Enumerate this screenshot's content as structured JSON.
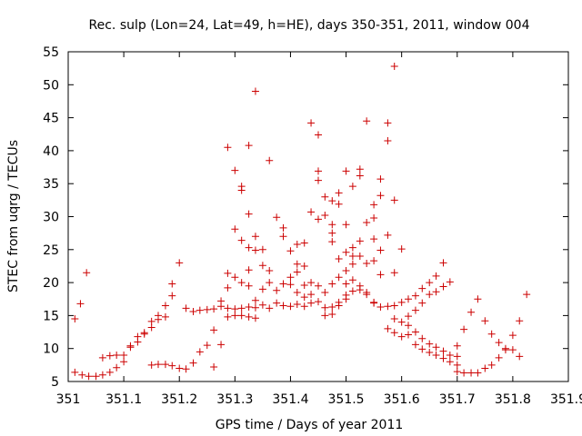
{
  "chart_data": {
    "type": "scatter",
    "title": "Rec. sulp (Lon=24, Lat=49, h=HE), days 350-351, 2011, window 004",
    "xlabel": "GPS time / Days of year 2011",
    "ylabel": "STEC from uqrg / TECUs",
    "xlim": [
      351,
      351.9
    ],
    "ylim": [
      5,
      55
    ],
    "xticks": [
      "351",
      "351.1",
      "351.2",
      "351.3",
      "351.4",
      "351.5",
      "351.6",
      "351.7",
      "351.8",
      "351.9"
    ],
    "yticks": [
      "5",
      "10",
      "15",
      "20",
      "25",
      "30",
      "35",
      "40",
      "45",
      "50",
      "55"
    ],
    "grid": false,
    "marker": "plus",
    "color": "#cc0000",
    "points": [
      [
        351.012,
        14.5
      ],
      [
        351.022,
        16.8
      ],
      [
        351.033,
        21.5
      ],
      [
        351.012,
        6.4
      ],
      [
        351.025,
        6.0
      ],
      [
        351.037,
        5.8
      ],
      [
        351.05,
        5.8
      ],
      [
        351.062,
        6.0
      ],
      [
        351.075,
        6.4
      ],
      [
        351.087,
        7.1
      ],
      [
        351.1,
        8.0
      ],
      [
        351.062,
        8.6
      ],
      [
        351.075,
        8.9
      ],
      [
        351.087,
        9.0
      ],
      [
        351.1,
        9.0
      ],
      [
        351.112,
        10.4
      ],
      [
        351.125,
        11.0
      ],
      [
        351.137,
        12.2
      ],
      [
        351.15,
        13.2
      ],
      [
        351.162,
        14.4
      ],
      [
        351.175,
        16.5
      ],
      [
        351.187,
        19.8
      ],
      [
        351.112,
        10.2
      ],
      [
        351.125,
        11.8
      ],
      [
        351.137,
        12.4
      ],
      [
        351.15,
        14.1
      ],
      [
        351.162,
        15.0
      ],
      [
        351.175,
        14.8
      ],
      [
        351.187,
        18.0
      ],
      [
        351.2,
        23.0
      ],
      [
        351.15,
        7.5
      ],
      [
        351.162,
        7.6
      ],
      [
        351.175,
        7.6
      ],
      [
        351.187,
        7.4
      ],
      [
        351.2,
        7.0
      ],
      [
        351.212,
        6.9
      ],
      [
        351.225,
        7.8
      ],
      [
        351.237,
        9.5
      ],
      [
        351.25,
        10.5
      ],
      [
        351.262,
        7.2
      ],
      [
        351.275,
        10.6
      ],
      [
        351.212,
        16.1
      ],
      [
        351.225,
        15.6
      ],
      [
        351.237,
        15.8
      ],
      [
        351.25,
        15.9
      ],
      [
        351.262,
        16.0
      ],
      [
        351.275,
        16.4
      ],
      [
        351.287,
        14.8
      ],
      [
        351.3,
        15.0
      ],
      [
        351.312,
        15.0
      ],
      [
        351.325,
        14.8
      ],
      [
        351.337,
        14.6
      ],
      [
        351.262,
        12.8
      ],
      [
        351.275,
        17.2
      ],
      [
        351.287,
        19.2
      ],
      [
        351.3,
        20.8
      ],
      [
        351.312,
        20.0
      ],
      [
        351.325,
        21.9
      ],
      [
        351.287,
        21.4
      ],
      [
        351.3,
        28.1
      ],
      [
        351.312,
        26.4
      ],
      [
        351.325,
        25.3
      ],
      [
        351.337,
        24.9
      ],
      [
        351.35,
        22.6
      ],
      [
        351.362,
        21.8
      ],
      [
        351.3,
        37.0
      ],
      [
        351.312,
        34.0
      ],
      [
        351.312,
        34.6
      ],
      [
        351.325,
        30.4
      ],
      [
        351.337,
        27.0
      ],
      [
        351.35,
        25.0
      ],
      [
        351.287,
        40.5
      ],
      [
        351.325,
        40.8
      ],
      [
        351.337,
        49.0
      ],
      [
        351.362,
        38.5
      ],
      [
        351.375,
        29.9
      ],
      [
        351.387,
        27.0
      ],
      [
        351.387,
        28.3
      ],
      [
        351.287,
        16.1
      ],
      [
        351.3,
        16.0
      ],
      [
        351.312,
        16.1
      ],
      [
        351.325,
        16.3
      ],
      [
        351.337,
        16.2
      ],
      [
        351.35,
        16.6
      ],
      [
        351.362,
        16.1
      ],
      [
        351.375,
        16.9
      ],
      [
        351.387,
        16.5
      ],
      [
        351.4,
        16.4
      ],
      [
        351.412,
        16.7
      ],
      [
        351.325,
        19.5
      ],
      [
        351.337,
        17.3
      ],
      [
        351.35,
        19.0
      ],
      [
        351.362,
        20.0
      ],
      [
        351.375,
        18.8
      ],
      [
        351.387,
        19.8
      ],
      [
        351.4,
        19.7
      ],
      [
        351.412,
        18.5
      ],
      [
        351.425,
        19.6
      ],
      [
        351.437,
        18.2
      ],
      [
        351.4,
        20.8
      ],
      [
        351.412,
        21.6
      ],
      [
        351.425,
        22.5
      ],
      [
        351.437,
        20.0
      ],
      [
        351.45,
        19.5
      ],
      [
        351.4,
        24.8
      ],
      [
        351.412,
        25.8
      ],
      [
        351.425,
        26.0
      ],
      [
        351.437,
        30.7
      ],
      [
        351.45,
        29.6
      ],
      [
        351.412,
        22.8
      ],
      [
        351.425,
        17.8
      ],
      [
        351.437,
        44.2
      ],
      [
        351.45,
        42.4
      ],
      [
        351.45,
        36.9
      ],
      [
        351.45,
        35.5
      ],
      [
        351.462,
        33.0
      ],
      [
        351.475,
        32.4
      ],
      [
        351.462,
        30.2
      ],
      [
        351.475,
        28.8
      ],
      [
        351.475,
        27.5
      ],
      [
        351.475,
        26.2
      ],
      [
        351.487,
        33.6
      ],
      [
        351.487,
        31.9
      ],
      [
        351.5,
        36.9
      ],
      [
        351.512,
        34.6
      ],
      [
        351.525,
        37.2
      ],
      [
        351.525,
        36.2
      ],
      [
        351.5,
        28.8
      ],
      [
        351.512,
        24.0
      ],
      [
        351.425,
        16.4
      ],
      [
        351.437,
        16.9
      ],
      [
        351.45,
        17.1
      ],
      [
        351.462,
        16.2
      ],
      [
        351.475,
        16.3
      ],
      [
        351.487,
        17.0
      ],
      [
        351.5,
        18.1
      ],
      [
        351.512,
        18.7
      ],
      [
        351.525,
        18.9
      ],
      [
        351.537,
        18.5
      ],
      [
        351.55,
        16.9
      ],
      [
        351.462,
        18.5
      ],
      [
        351.475,
        19.8
      ],
      [
        351.487,
        20.8
      ],
      [
        351.5,
        21.8
      ],
      [
        351.512,
        22.8
      ],
      [
        351.525,
        24.0
      ],
      [
        351.537,
        22.9
      ],
      [
        351.462,
        15.0
      ],
      [
        351.475,
        15.2
      ],
      [
        351.487,
        16.5
      ],
      [
        351.5,
        17.5
      ],
      [
        351.5,
        19.8
      ],
      [
        351.512,
        20.4
      ],
      [
        351.525,
        19.5
      ],
      [
        351.537,
        18.2
      ],
      [
        351.487,
        23.6
      ],
      [
        351.5,
        24.6
      ],
      [
        351.512,
        25.3
      ],
      [
        351.525,
        26.3
      ],
      [
        351.537,
        29.1
      ],
      [
        351.55,
        31.8
      ],
      [
        351.537,
        44.5
      ],
      [
        351.55,
        29.8
      ],
      [
        351.562,
        33.2
      ],
      [
        351.562,
        35.7
      ],
      [
        351.575,
        44.2
      ],
      [
        351.575,
        41.5
      ],
      [
        351.587,
        52.8
      ],
      [
        351.587,
        32.5
      ],
      [
        351.6,
        25.1
      ],
      [
        351.55,
        26.6
      ],
      [
        351.562,
        24.9
      ],
      [
        351.575,
        27.2
      ],
      [
        351.587,
        21.5
      ],
      [
        351.55,
        23.3
      ],
      [
        351.562,
        21.2
      ],
      [
        351.55,
        17.0
      ],
      [
        351.562,
        16.3
      ],
      [
        351.575,
        16.4
      ],
      [
        351.587,
        16.5
      ],
      [
        351.6,
        17.0
      ],
      [
        351.612,
        17.5
      ],
      [
        351.625,
        18.0
      ],
      [
        351.637,
        19.1
      ],
      [
        351.65,
        20.0
      ],
      [
        351.662,
        21.0
      ],
      [
        351.675,
        23.0
      ],
      [
        351.575,
        13.0
      ],
      [
        351.587,
        12.4
      ],
      [
        351.6,
        11.8
      ],
      [
        351.612,
        12.1
      ],
      [
        351.625,
        10.6
      ],
      [
        351.637,
        9.9
      ],
      [
        351.65,
        9.4
      ],
      [
        351.662,
        9.0
      ],
      [
        351.675,
        8.5
      ],
      [
        351.687,
        8.0
      ],
      [
        351.7,
        7.5
      ],
      [
        351.587,
        14.5
      ],
      [
        351.6,
        14.0
      ],
      [
        351.612,
        13.5
      ],
      [
        351.625,
        12.5
      ],
      [
        351.637,
        11.5
      ],
      [
        351.65,
        10.7
      ],
      [
        351.662,
        10.2
      ],
      [
        351.675,
        9.6
      ],
      [
        351.687,
        9.0
      ],
      [
        351.7,
        8.8
      ],
      [
        351.612,
        14.9
      ],
      [
        351.625,
        15.8
      ],
      [
        351.637,
        16.9
      ],
      [
        351.65,
        18.2
      ],
      [
        351.662,
        18.6
      ],
      [
        351.675,
        19.4
      ],
      [
        351.687,
        20.1
      ],
      [
        351.7,
        10.4
      ],
      [
        351.712,
        12.9
      ],
      [
        351.725,
        15.5
      ],
      [
        351.737,
        17.5
      ],
      [
        351.75,
        14.2
      ],
      [
        351.762,
        12.2
      ],
      [
        351.775,
        10.9
      ],
      [
        351.787,
        9.8
      ],
      [
        351.8,
        9.8
      ],
      [
        351.812,
        8.8
      ],
      [
        351.7,
        6.5
      ],
      [
        351.712,
        6.3
      ],
      [
        351.725,
        6.3
      ],
      [
        351.737,
        6.3
      ],
      [
        351.75,
        7.0
      ],
      [
        351.762,
        7.5
      ],
      [
        351.775,
        8.6
      ],
      [
        351.787,
        10.0
      ],
      [
        351.8,
        12.0
      ],
      [
        351.812,
        14.2
      ],
      [
        351.825,
        18.2
      ]
    ]
  }
}
